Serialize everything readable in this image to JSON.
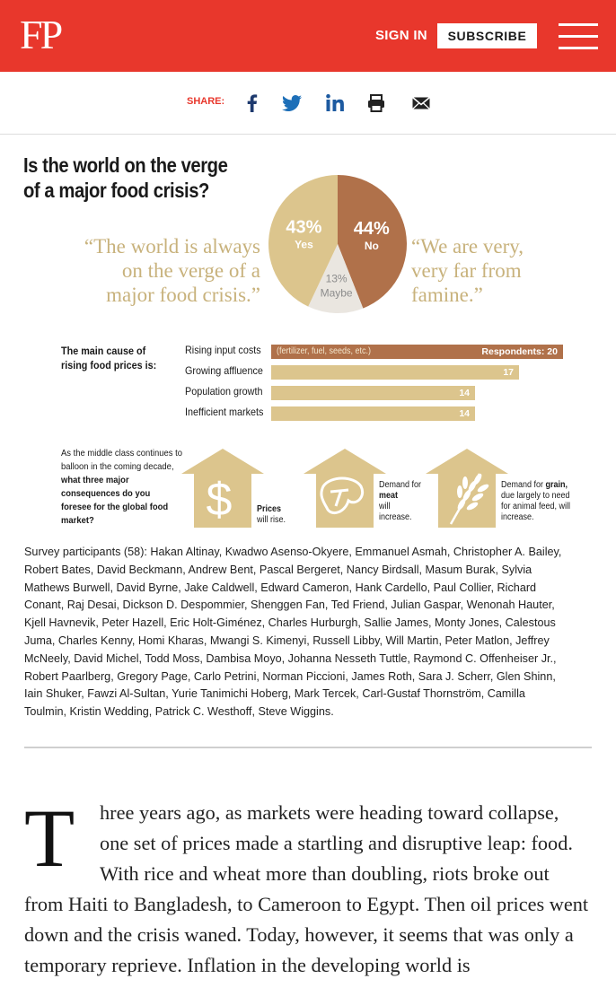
{
  "header": {
    "logo": "FP",
    "signin": "SIGN IN",
    "subscribe": "SUBSCRIBE",
    "brand_color": "#e8372c"
  },
  "share": {
    "label": "SHARE:",
    "icons": [
      "facebook-icon",
      "twitter-icon",
      "linkedin-icon",
      "print-icon",
      "email-icon"
    ]
  },
  "infographic": {
    "title_line1": "Is the world on the verge",
    "title_line2": "of a major food crisis?",
    "quote_left": [
      "“The world is always",
      "on the verge of a",
      "major food crisis.”"
    ],
    "quote_right": [
      "“We are very,",
      "very far from",
      "famine.”"
    ],
    "cause_label_line1": "The main cause of",
    "cause_label_line2": "rising food prices is:",
    "middle_question_html_parts": {
      "p1": "As the middle class continues to balloon in the coming decade,",
      "p2": "what three major consequences do you foresee for the global food market?"
    },
    "consequences": [
      {
        "icon": "dollar-house-icon",
        "text_bold": "Prices",
        "text_rest": "will rise."
      },
      {
        "icon": "steak-house-icon",
        "text_pre": "Demand for",
        "text_bold": "meat",
        "text_rest": "will increase."
      },
      {
        "icon": "wheat-house-icon",
        "text_pre": "Demand for",
        "text_bold": "grain,",
        "text_rest": "due largely to need for animal feed, will increase."
      }
    ]
  },
  "chart_data": [
    {
      "type": "pie",
      "slices": [
        {
          "label": "Yes",
          "value": 43,
          "display": "43%",
          "color": "#dcc58d"
        },
        {
          "label": "No",
          "value": 44,
          "display": "44%",
          "color": "#b0714a"
        },
        {
          "label": "Maybe",
          "value": 13,
          "display": "13%",
          "color": "#eae6e0"
        }
      ]
    },
    {
      "type": "bar",
      "categories": [
        "Rising input costs",
        "Growing affluence",
        "Population growth",
        "Inefficient markets"
      ],
      "values": [
        20,
        17,
        14,
        14
      ],
      "notes": [
        "(fertilizer, fuel, seeds, etc.)",
        "",
        "",
        ""
      ],
      "first_value_prefix": "Respondents: ",
      "colors": [
        "#b0714a",
        "#dcc58d",
        "#dcc58d",
        "#dcc58d"
      ]
    }
  ],
  "participants": "Survey participants (58): Hakan Altinay, Kwadwo Asenso-Okyere, Emmanuel Asmah, Christopher A. Bailey, Robert Bates, David Beckmann, Andrew Bent, Pascal Bergeret, Nancy Birdsall, Masum Burak, Sylvia Mathews Burwell, David Byrne, Jake Caldwell, Edward Cameron, Hank Cardello, Paul Collier, Richard Conant, Raj Desai, Dickson D. Despommier, Shenggen Fan, Ted Friend, Julian Gaspar, Wenonah Hauter, Kjell Havnevik, Peter Hazell, Eric Holt-Giménez, Charles Hurburgh, Sallie James, Monty Jones, Calestous Juma, Charles Kenny, Homi Kharas, Mwangi S. Kimenyi, Russell Libby, Will Martin, Peter Matlon, Jeffrey McNeely, David Michel, Todd Moss, Dambisa Moyo, Johanna Nesseth Tuttle, Raymond C. Offenheiser Jr., Robert Paarlberg, Gregory Page, Carlo Petrini, Norman Piccioni, James Roth, Sara J. Scherr, Glen Shinn, Iain Shuker, Fawzi Al-Sultan, Yurie Tanimichi Hoberg, Mark Tercek, Carl-Gustaf Thornström, Camilla Toulmin, Kristin Wedding, Patrick C. Westhoff, Steve Wiggins.",
  "article": {
    "dropcap": "T",
    "text": "hree years ago, as markets were heading toward collapse, one set of prices made a startling and disruptive leap: food. With rice and wheat more than doubling, riots broke out from Haiti to Bangladesh, to Cameroon to Egypt. Then oil prices went down and the crisis waned. Today, however, it seems that was only a temporary reprieve. Inflation in the developing world is"
  }
}
